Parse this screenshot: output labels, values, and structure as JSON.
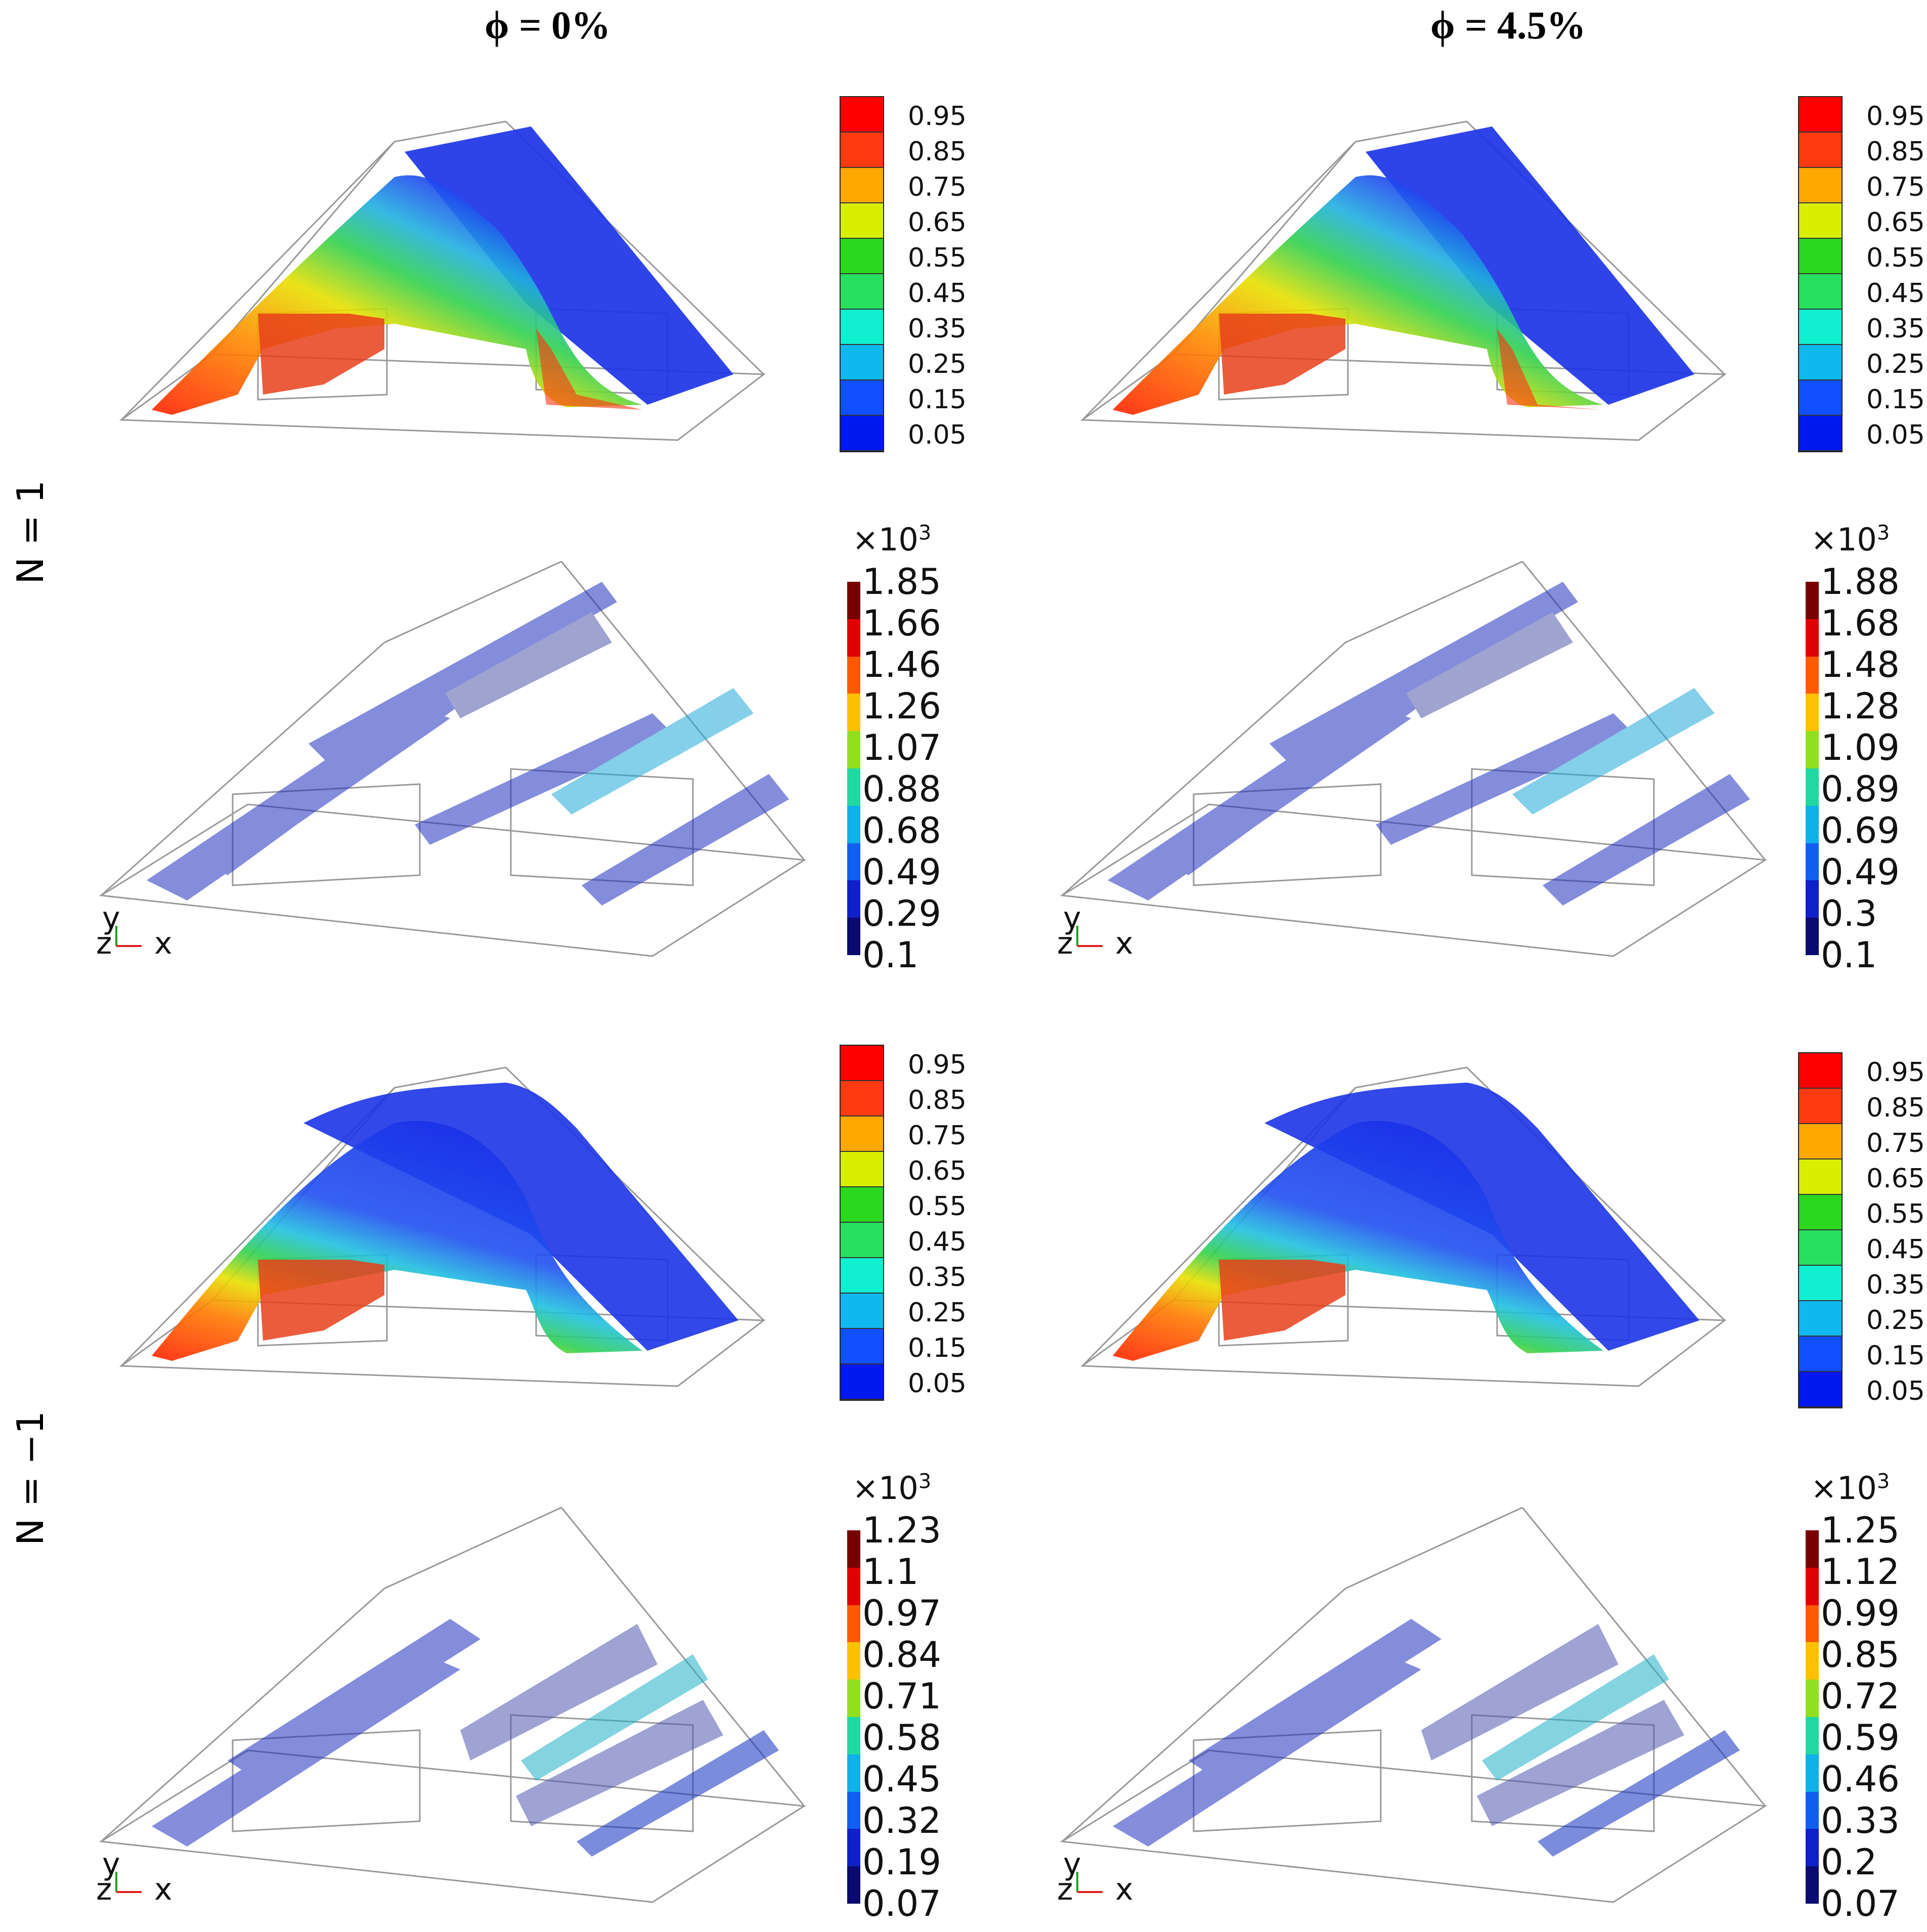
{
  "columns": [
    {
      "title": "ϕ = 0%"
    },
    {
      "title": "ϕ = 4.5%"
    }
  ],
  "rows": [
    {
      "label": "N = 1"
    },
    {
      "label": "N = −1"
    }
  ],
  "colorbars": {
    "fraction": {
      "ticks": [
        "0.95",
        "0.85",
        "0.75",
        "0.65",
        "0.55",
        "0.45",
        "0.35",
        "0.25",
        "0.15",
        "0.05"
      ],
      "colors": [
        "#ff0000",
        "#ff3a10",
        "#ffa800",
        "#d8f000",
        "#2ad820",
        "#28e060",
        "#10f0d0",
        "#10b8f0",
        "#1050ff",
        "#0018f0"
      ]
    },
    "magnitude_n1_phi0": {
      "multiplier": "×10",
      "exponent": "3",
      "ticks": [
        "1.85",
        "1.66",
        "1.46",
        "1.26",
        "1.07",
        "0.88",
        "0.68",
        "0.49",
        "0.29",
        "0.1"
      ]
    },
    "magnitude_n1_phi45": {
      "multiplier": "×10",
      "exponent": "3",
      "ticks": [
        "1.88",
        "1.68",
        "1.48",
        "1.28",
        "1.09",
        "0.89",
        "0.69",
        "0.49",
        "0.3",
        "0.1"
      ]
    },
    "magnitude_nm1_phi0": {
      "multiplier": "×10",
      "exponent": "3",
      "ticks": [
        "1.23",
        "1.1",
        "0.97",
        "0.84",
        "0.71",
        "0.58",
        "0.45",
        "0.32",
        "0.19",
        "0.07"
      ]
    },
    "magnitude_nm1_phi45": {
      "multiplier": "×10",
      "exponent": "3",
      "ticks": [
        "1.25",
        "1.12",
        "0.99",
        "0.85",
        "0.72",
        "0.59",
        "0.46",
        "0.33",
        "0.2",
        "0.07"
      ]
    },
    "magnitude_colors": [
      "#7a0000",
      "#e00000",
      "#ff5a00",
      "#ffc000",
      "#90e020",
      "#20d8a0",
      "#10b0e8",
      "#1060f0",
      "#1020c8",
      "#0a0a70"
    ]
  },
  "axes_triad": {
    "y": "y",
    "z": "z",
    "x": "x"
  }
}
